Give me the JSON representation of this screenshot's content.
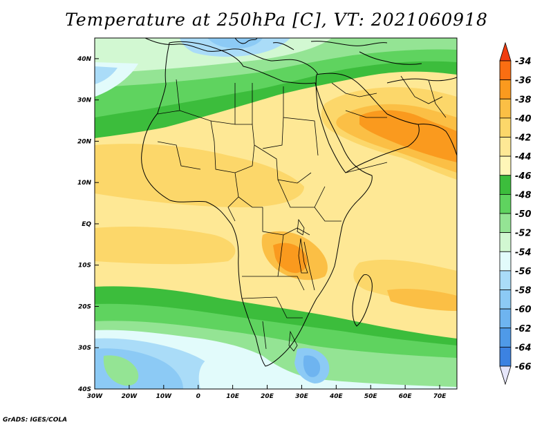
{
  "title": "Temperature at 250hPa [C], VT: 2021060918",
  "credit": "GrADS: IGES/COLA",
  "map": {
    "projection": "latlon",
    "lon_range": [
      -30,
      75
    ],
    "lat_range": [
      -40,
      45
    ],
    "x_ticks": [
      {
        "value": -30,
        "label": "30W"
      },
      {
        "value": -20,
        "label": "20W"
      },
      {
        "value": -10,
        "label": "10W"
      },
      {
        "value": 0,
        "label": "0"
      },
      {
        "value": 10,
        "label": "10E"
      },
      {
        "value": 20,
        "label": "20E"
      },
      {
        "value": 30,
        "label": "30E"
      },
      {
        "value": 40,
        "label": "40E"
      },
      {
        "value": 50,
        "label": "50E"
      },
      {
        "value": 60,
        "label": "60E"
      },
      {
        "value": 70,
        "label": "70E"
      }
    ],
    "y_ticks": [
      {
        "value": 40,
        "label": "40N"
      },
      {
        "value": 30,
        "label": "30N"
      },
      {
        "value": 20,
        "label": "20N"
      },
      {
        "value": 10,
        "label": "10N"
      },
      {
        "value": 0,
        "label": "EQ"
      },
      {
        "value": -10,
        "label": "10S"
      },
      {
        "value": -20,
        "label": "20S"
      },
      {
        "value": -30,
        "label": "30S"
      },
      {
        "value": -40,
        "label": "40S"
      }
    ]
  },
  "colorbar": {
    "labels": [
      "-34",
      "-36",
      "-38",
      "-40",
      "-42",
      "-44",
      "-46",
      "-48",
      "-50",
      "-52",
      "-54",
      "-56",
      "-58",
      "-60",
      "-62",
      "-64",
      "-66"
    ],
    "colors": [
      "#f03c10",
      "#fa6e12",
      "#fa9a1e",
      "#fbbf45",
      "#fcd76a",
      "#fee895",
      "#fff6b8",
      "#3cbd3c",
      "#5fd35f",
      "#94e494",
      "#d2f8d2",
      "#e2fbfb",
      "#aadcf8",
      "#8ccaf5",
      "#6eb4f0",
      "#4f9ae8",
      "#3c82e1",
      "#2864d2",
      "#1446b4",
      "#0a288c",
      "#e6e6fa"
    ]
  }
}
